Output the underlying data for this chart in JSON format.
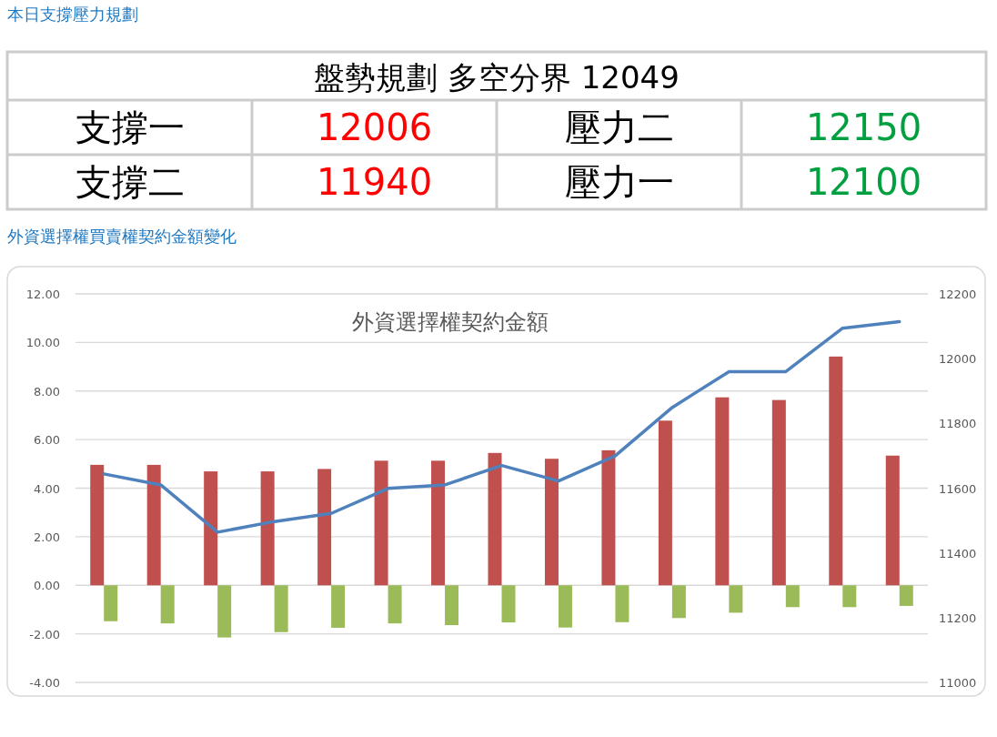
{
  "chart_data": [
    {
      "type": "other",
      "title": "本日支撐壓力規劃",
      "annotations": [
        "盤勢規劃 多空分界 12049",
        "支撐一",
        "12006",
        "壓力二",
        "12150",
        "支撐二",
        "11940",
        "壓力一",
        "12100"
      ],
      "colors": [
        "#000000",
        "#000000",
        "#ff0000",
        "#000000",
        "#00a040",
        "#000000",
        "#ff0000",
        "#000000",
        "#00a040"
      ]
    },
    {
      "type": "bar",
      "title": "外資選擇權買賣權契約金額變化",
      "subtitle": "外資選擇權契約金額",
      "categories": [
        null,
        null,
        null,
        null,
        null,
        null,
        null,
        null,
        null,
        null,
        null,
        null,
        null,
        null,
        null
      ],
      "series": [
        {
          "type": "bar",
          "color": "#c0504d",
          "values": [
            4.96,
            4.96,
            4.69,
            4.69,
            4.79,
            5.13,
            5.13,
            5.45,
            5.21,
            5.56,
            6.78,
            7.74,
            7.63,
            9.42,
            5.34
          ]
        },
        {
          "type": "bar",
          "color": "#9bbb59",
          "values": [
            -1.48,
            -1.57,
            -2.15,
            -1.93,
            -1.75,
            -1.57,
            -1.64,
            -1.53,
            -1.74,
            -1.52,
            -1.35,
            -1.13,
            -0.9,
            -0.9,
            -0.85
          ]
        },
        {
          "type": "line",
          "color": "#4f81bd",
          "axis": "y2",
          "values": [
            11644,
            11610,
            11464,
            11497,
            11522,
            11599,
            11610,
            11670,
            11622,
            11700,
            11849,
            11960,
            11960,
            12094,
            12114
          ]
        }
      ],
      "ylim": [
        -4,
        12
      ],
      "yticks": [
        {
          "value": -4,
          "label": "-4.00"
        },
        {
          "value": -2,
          "label": "-2.00"
        },
        {
          "value": 0,
          "label": "0.00"
        },
        {
          "value": 2,
          "label": "2.00"
        },
        {
          "value": 4,
          "label": "4.00"
        },
        {
          "value": 6,
          "label": "6.00"
        },
        {
          "value": 8,
          "label": "8.00"
        },
        {
          "value": 10,
          "label": "10.00"
        },
        {
          "value": 12,
          "label": "12.00"
        }
      ],
      "y2lim": [
        11000,
        12200
      ],
      "y2ticks": [
        11000,
        11200,
        11400,
        11600,
        11800,
        12000,
        12200
      ],
      "grid": "y"
    }
  ]
}
